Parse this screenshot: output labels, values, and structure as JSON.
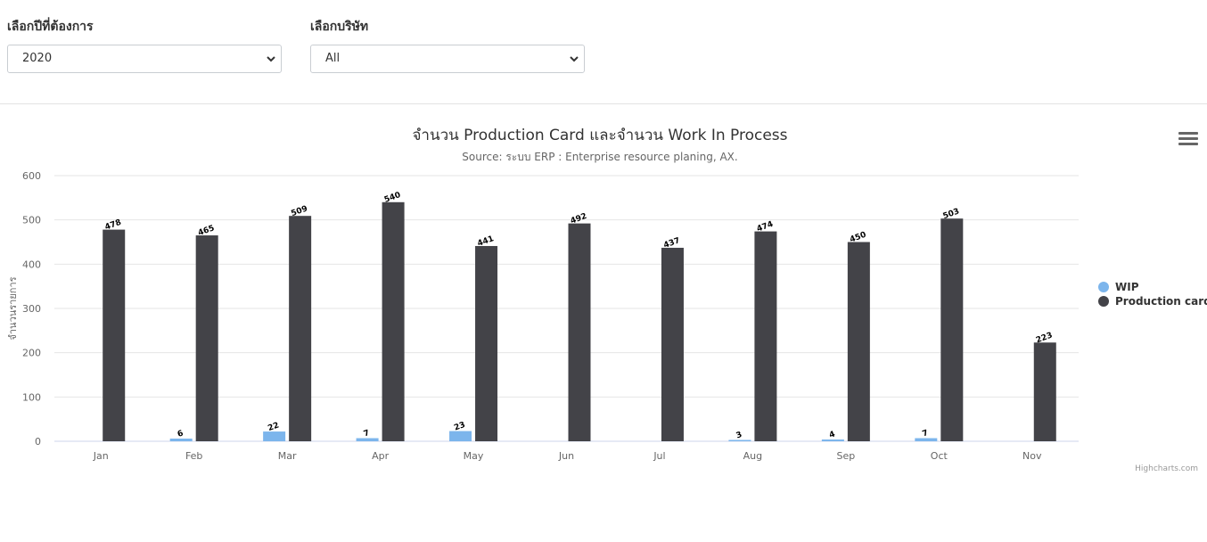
{
  "filters": {
    "year": {
      "label": "เลือกปีที่ต้องการ",
      "value": "2020"
    },
    "company": {
      "label": "เลือกบริษัท",
      "value": "All"
    }
  },
  "credits": "Highcharts.com",
  "chart_data": {
    "type": "bar",
    "title": "จำนวน Production Card และจำนวน Work In Process",
    "subtitle": "Source: ระบบ ERP : Enterprise resource planing, AX.",
    "xlabel": "",
    "ylabel": "จำนวนรายการ",
    "ylim": [
      0,
      600
    ],
    "yticks": [
      0,
      100,
      200,
      300,
      400,
      500,
      600
    ],
    "grid": true,
    "legend_position": "right",
    "categories": [
      "Jan",
      "Feb",
      "Mar",
      "Apr",
      "May",
      "Jun",
      "Jul",
      "Aug",
      "Sep",
      "Oct",
      "Nov"
    ],
    "series": [
      {
        "name": "WIP",
        "color": "#7cb5ec",
        "values": [
          null,
          6,
          22,
          7,
          23,
          null,
          null,
          3,
          4,
          7,
          null
        ]
      },
      {
        "name": "Production card",
        "color": "#434348",
        "values": [
          478,
          465,
          509,
          540,
          441,
          492,
          437,
          474,
          450,
          503,
          223
        ]
      }
    ]
  }
}
